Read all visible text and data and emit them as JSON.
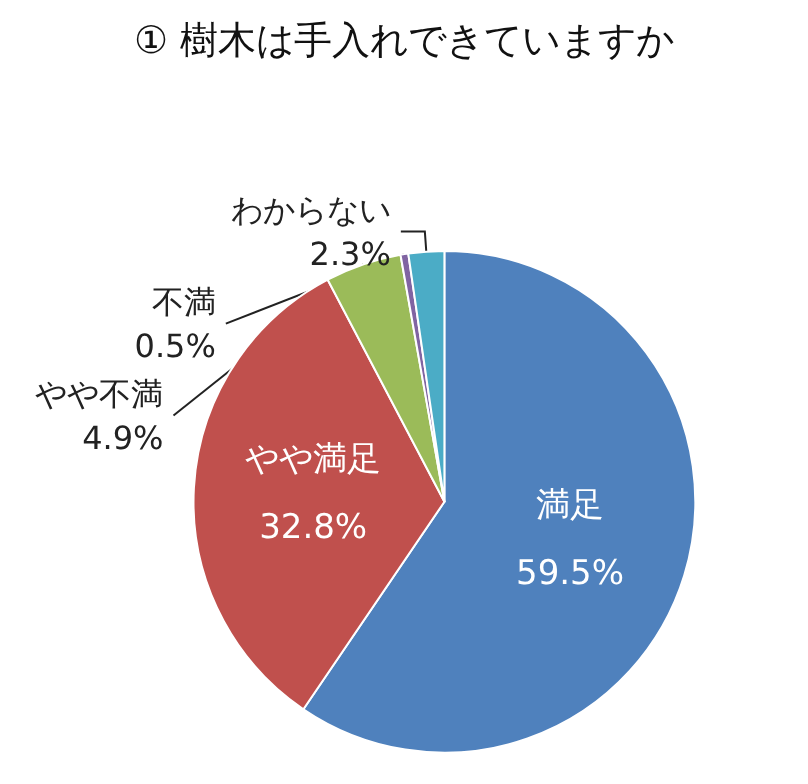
{
  "chart_data": {
    "type": "pie",
    "title": "① 樹木は手入れできていますか",
    "categories": [
      "満足",
      "やや満足",
      "やや不満",
      "不満",
      "わからない"
    ],
    "values": [
      59.5,
      32.8,
      4.9,
      0.5,
      2.3
    ],
    "value_labels": [
      "59.5%",
      "32.8%",
      "4.9%",
      "0.5%",
      "2.3%"
    ],
    "colors": [
      "#4f81bd",
      "#c0504d",
      "#9bbb59",
      "#8064a2",
      "#4bacc6"
    ],
    "legend": false
  }
}
